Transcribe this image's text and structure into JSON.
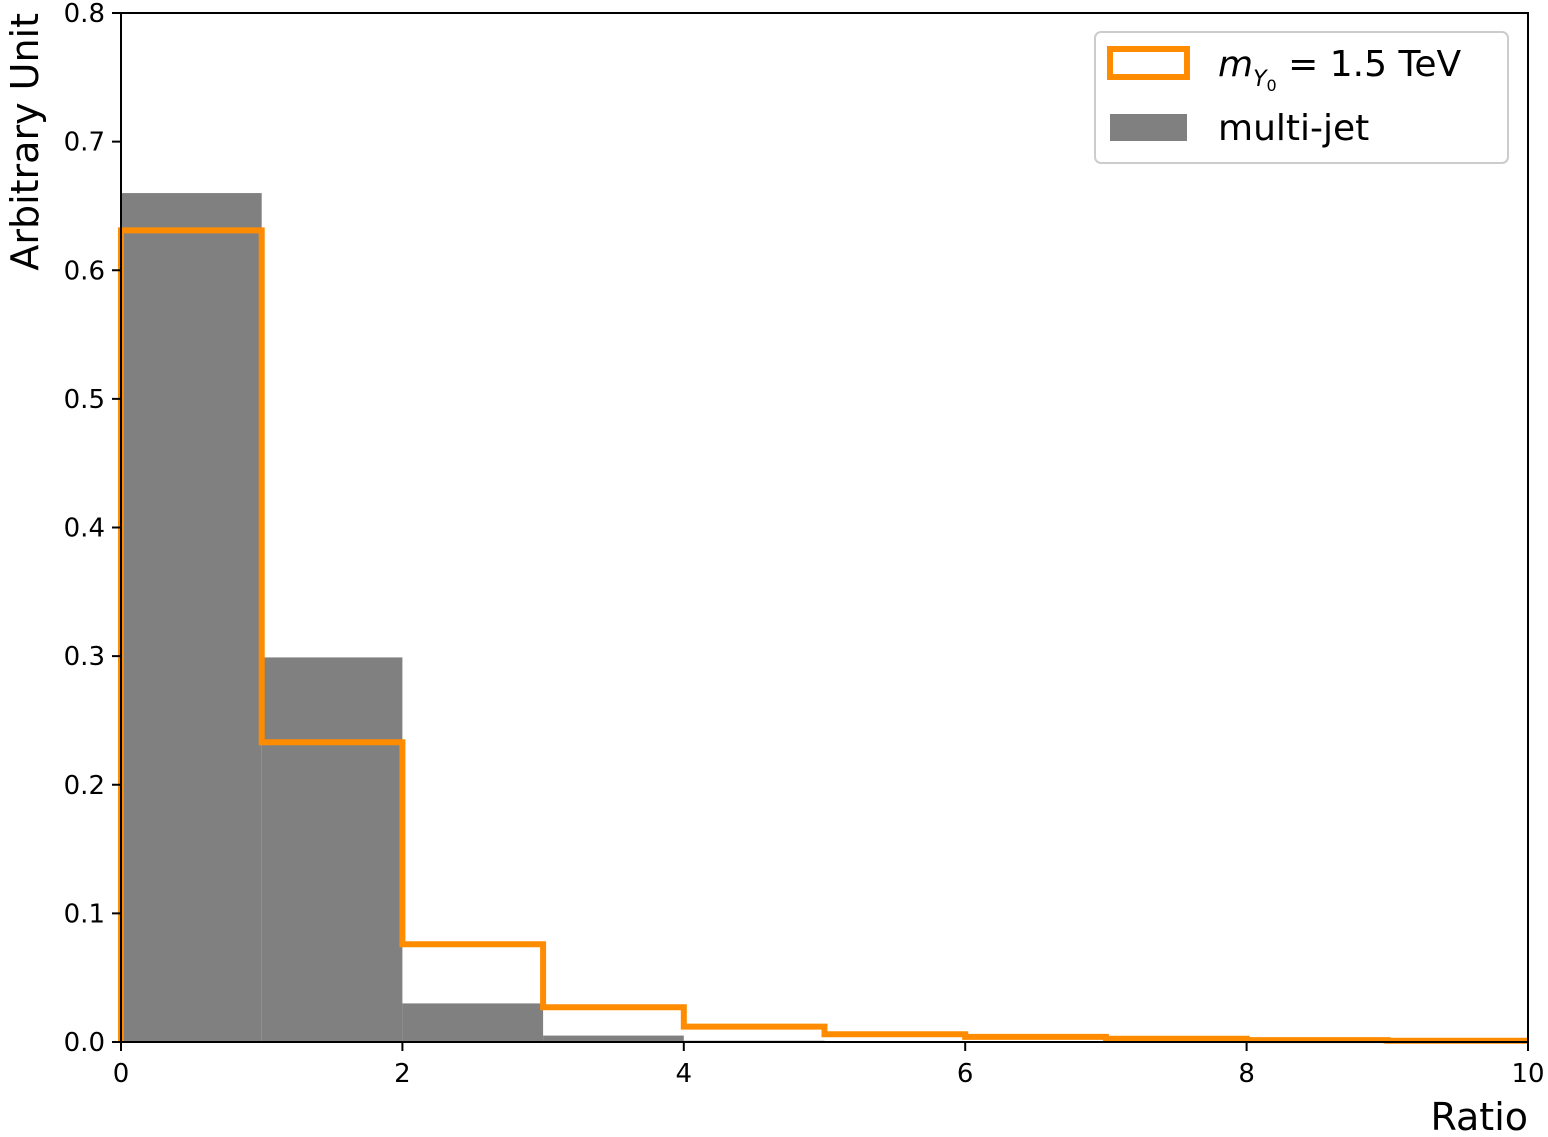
{
  "chart_data": {
    "type": "bar",
    "xlabel": "Ratio",
    "ylabel": "Arbitrary Unit",
    "xlim": [
      0,
      10
    ],
    "ylim": [
      0,
      0.8
    ],
    "xticks": [
      "0",
      "2",
      "4",
      "6",
      "8",
      "10"
    ],
    "yticks": [
      "0.0",
      "0.1",
      "0.2",
      "0.3",
      "0.4",
      "0.5",
      "0.6",
      "0.7",
      "0.8"
    ],
    "bin_edges": [
      0,
      1,
      2,
      3,
      4,
      5,
      6,
      7,
      8,
      9,
      10
    ],
    "grid": false,
    "legend_position": "top-right",
    "series": [
      {
        "name": "m_Y0 = 1.5 TeV",
        "label_main": "m",
        "label_sub": "Y",
        "label_subsub": "0",
        "label_rest": " = 1.5 TeV",
        "style": "step",
        "color": "#ff8c00",
        "values": [
          0.631,
          0.233,
          0.076,
          0.027,
          0.012,
          0.006,
          0.004,
          0.0025,
          0.0015,
          0.001
        ]
      },
      {
        "name": "multi-jet",
        "style": "filled",
        "color": "#808080",
        "values": [
          0.66,
          0.299,
          0.03,
          0.005,
          0.001,
          0.0005,
          0.0003,
          0.0002,
          0.0001,
          0.0001
        ]
      }
    ]
  }
}
